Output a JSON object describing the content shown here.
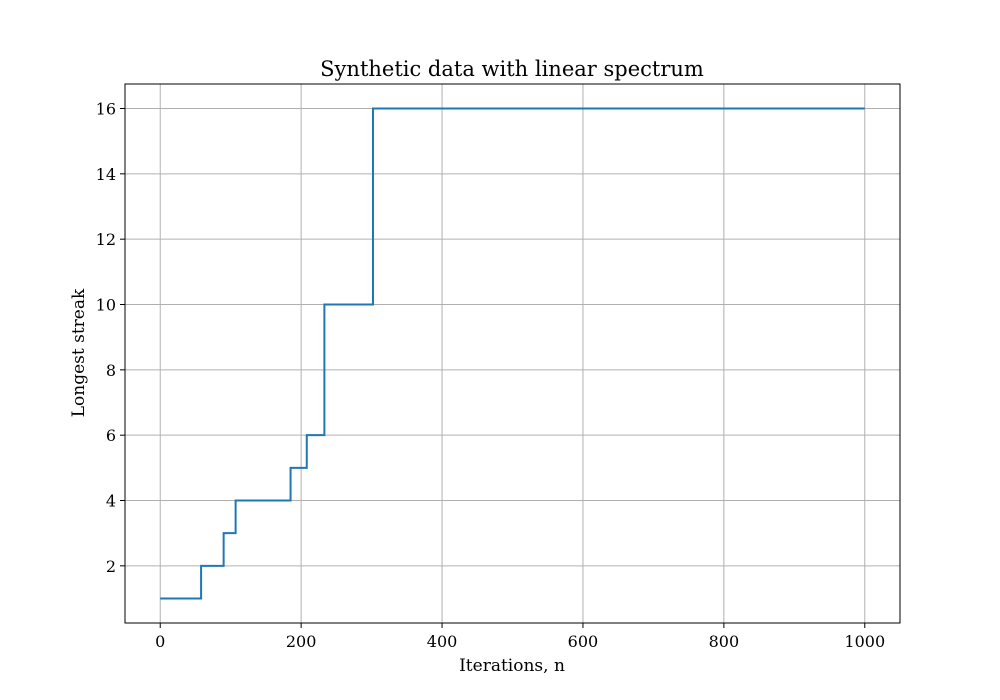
{
  "chart_data": {
    "type": "line",
    "title": "Synthetic data with linear spectrum",
    "xlabel": "Iterations, n",
    "ylabel": "Longest streak",
    "xlim": [
      -50,
      1050
    ],
    "ylim": [
      0.25,
      16.75
    ],
    "x_ticks": [
      0,
      200,
      400,
      600,
      800,
      1000
    ],
    "y_ticks": [
      2,
      4,
      6,
      8,
      10,
      12,
      14,
      16
    ],
    "grid": true,
    "step": "post",
    "series": [
      {
        "color": "#1f77b4",
        "x": [
          0,
          58,
          90,
          107,
          185,
          208,
          233,
          302,
          1000
        ],
        "y": [
          1,
          2,
          3,
          4,
          5,
          6,
          10,
          16,
          16
        ]
      }
    ]
  }
}
